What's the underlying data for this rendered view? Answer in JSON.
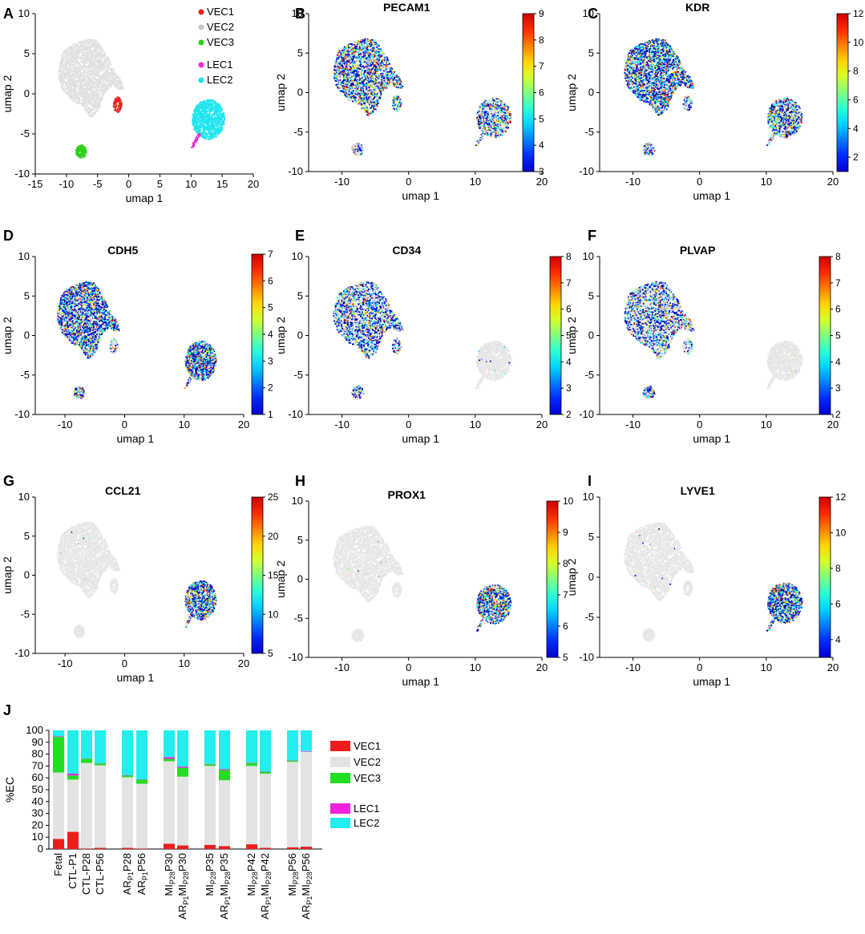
{
  "chart_data": [
    {
      "panel": "A",
      "type": "scatter",
      "title": "",
      "xlabel": "umap 1",
      "ylabel": "umap 2",
      "xlim": [
        -15,
        20
      ],
      "ylim": [
        -10,
        10
      ],
      "xticks": [
        -15,
        -10,
        -5,
        0,
        5,
        10,
        15,
        20
      ],
      "yticks": [
        -10,
        -5,
        0,
        5,
        10
      ],
      "legend": [
        {
          "label": "VEC1",
          "color": "#e8211c"
        },
        {
          "label": "VEC2",
          "color": "#c8c8c8"
        },
        {
          "label": "VEC3",
          "color": "#2fd01c"
        },
        {
          "label": "LEC1",
          "color": "#ee2bd6"
        },
        {
          "label": "LEC2",
          "color": "#1fe5ee"
        }
      ],
      "clusters": [
        {
          "name": "VEC2",
          "shape": "main",
          "cx": -5.5,
          "cy": 2.0,
          "color": "#e0e0e0"
        },
        {
          "name": "VEC1",
          "shape": "blob",
          "cx": -1.8,
          "cy": -1.4,
          "rx": 0.7,
          "ry": 1.0,
          "color": "#e8211c"
        },
        {
          "name": "VEC3",
          "shape": "blob",
          "cx": -7.6,
          "cy": -7.2,
          "rx": 1.0,
          "ry": 0.8,
          "color": "#2fd01c"
        },
        {
          "name": "LEC2",
          "shape": "blob",
          "cx": 12.8,
          "cy": -3.2,
          "rx": 2.6,
          "ry": 2.5,
          "color": "#1fe5ee"
        },
        {
          "name": "LEC1",
          "shape": "tail",
          "cx": 10.4,
          "cy": -6.2,
          "color": "#ee2bd6"
        }
      ]
    },
    {
      "panel": "B",
      "type": "scatter",
      "title": "PECAM1",
      "xlabel": "umap 1",
      "ylabel": "umap 2",
      "xlim": [
        -15,
        20
      ],
      "ylim": [
        -10,
        10
      ],
      "xticks": [
        -10,
        0,
        10,
        20
      ],
      "yticks": [
        -10,
        -5,
        0,
        5,
        10
      ],
      "colorbar": {
        "min": 3,
        "max": 9,
        "ticks": [
          3,
          4,
          5,
          6,
          7,
          8,
          9
        ]
      }
    },
    {
      "panel": "C",
      "type": "scatter",
      "title": "KDR",
      "xlabel": "umap 1",
      "ylabel": "umap 2",
      "xlim": [
        -15,
        20
      ],
      "ylim": [
        -10,
        10
      ],
      "xticks": [
        -10,
        0,
        10,
        20
      ],
      "yticks": [
        -10,
        -5,
        0,
        5,
        10
      ],
      "colorbar": {
        "min": 1,
        "max": 12,
        "ticks": [
          2,
          4,
          6,
          8,
          10,
          12
        ]
      }
    },
    {
      "panel": "D",
      "type": "scatter",
      "title": "CDH5",
      "xlabel": "umap 1",
      "ylabel": "umap 2",
      "xlim": [
        -15,
        20
      ],
      "ylim": [
        -10,
        10
      ],
      "xticks": [
        -10,
        0,
        10,
        20
      ],
      "yticks": [
        -10,
        -5,
        0,
        5,
        10
      ],
      "colorbar": {
        "min": 1,
        "max": 7,
        "ticks": [
          1,
          2,
          3,
          4,
          5,
          6,
          7
        ]
      }
    },
    {
      "panel": "E",
      "type": "scatter",
      "title": "CD34",
      "xlabel": "umap 1",
      "ylabel": "umap 2",
      "xlim": [
        -15,
        20
      ],
      "ylim": [
        -10,
        10
      ],
      "xticks": [
        -10,
        0,
        10,
        20
      ],
      "yticks": [
        -10,
        -5,
        0,
        5,
        10
      ],
      "colorbar": {
        "min": 2,
        "max": 8,
        "ticks": [
          2,
          3,
          4,
          5,
          6,
          7,
          8
        ]
      }
    },
    {
      "panel": "F",
      "type": "scatter",
      "title": "PLVAP",
      "xlabel": "umap 1",
      "ylabel": "umap 2",
      "xlim": [
        -15,
        20
      ],
      "ylim": [
        -10,
        10
      ],
      "xticks": [
        -10,
        0,
        10,
        20
      ],
      "yticks": [
        -10,
        -5,
        0,
        5,
        10
      ],
      "colorbar": {
        "min": 2,
        "max": 8,
        "ticks": [
          2,
          3,
          4,
          5,
          6,
          7,
          8
        ]
      }
    },
    {
      "panel": "G",
      "type": "scatter",
      "title": "CCL21",
      "xlabel": "umap 1",
      "ylabel": "umap 2",
      "xlim": [
        -15,
        20
      ],
      "ylim": [
        -10,
        10
      ],
      "xticks": [
        -10,
        0,
        10,
        20
      ],
      "yticks": [
        -10,
        -5,
        0,
        5,
        10
      ],
      "colorbar": {
        "min": 5,
        "max": 25,
        "ticks": [
          5,
          10,
          15,
          20,
          25
        ]
      }
    },
    {
      "panel": "H",
      "type": "scatter",
      "title": "PROX1",
      "xlabel": "umap 1",
      "ylabel": "umap 2",
      "xlim": [
        -15,
        20
      ],
      "ylim": [
        -10,
        10
      ],
      "xticks": [
        -10,
        0,
        10,
        20
      ],
      "yticks": [
        -10,
        -5,
        0,
        5,
        10
      ],
      "colorbar": {
        "min": 5,
        "max": 10,
        "ticks": [
          5,
          6,
          7,
          8,
          9,
          10
        ]
      }
    },
    {
      "panel": "I",
      "type": "scatter",
      "title": "LYVE1",
      "xlabel": "umap 1",
      "ylabel": "umap 2",
      "xlim": [
        -15,
        20
      ],
      "ylim": [
        -10,
        10
      ],
      "xticks": [
        -10,
        0,
        10,
        20
      ],
      "yticks": [
        -10,
        -5,
        0,
        5,
        10
      ],
      "colorbar": {
        "min": 3,
        "max": 12,
        "ticks": [
          4,
          6,
          8,
          10,
          12
        ]
      }
    },
    {
      "panel": "J",
      "type": "bar",
      "stacked": true,
      "ylabel": "%EC",
      "xlabel": "",
      "ylim": [
        0,
        100
      ],
      "yticks": [
        0,
        10,
        20,
        30,
        40,
        50,
        60,
        70,
        80,
        90,
        100
      ],
      "categories": [
        {
          "label": "Fetal",
          "parts": [
            {
              "t": "Fetal"
            }
          ]
        },
        {
          "label": "CTL-P1",
          "parts": [
            {
              "t": "CTL-P1"
            }
          ]
        },
        {
          "label": "CTL-P28",
          "parts": [
            {
              "t": "CTL-P28"
            }
          ]
        },
        {
          "label": "CTL-P56",
          "parts": [
            {
              "t": "CTL-P56"
            }
          ]
        },
        {
          "label": "ARP1P28",
          "parts": [
            {
              "t": "AR"
            },
            {
              "t": "P1",
              "sub": true
            },
            {
              "t": "P28"
            }
          ]
        },
        {
          "label": "ARP1P56",
          "parts": [
            {
              "t": "AR"
            },
            {
              "t": "P1",
              "sub": true
            },
            {
              "t": "P56"
            }
          ]
        },
        {
          "label": "MIP28P30",
          "parts": [
            {
              "t": "MI"
            },
            {
              "t": "P28",
              "sub": true
            },
            {
              "t": "P30"
            }
          ]
        },
        {
          "label": "ARP1MIP28P30",
          "parts": [
            {
              "t": "AR"
            },
            {
              "t": "P1",
              "sub": true
            },
            {
              "t": "MI"
            },
            {
              "t": "P28",
              "sub": true
            },
            {
              "t": "P30"
            }
          ]
        },
        {
          "label": "MIP28P35",
          "parts": [
            {
              "t": "MI"
            },
            {
              "t": "P28",
              "sub": true
            },
            {
              "t": "P35"
            }
          ]
        },
        {
          "label": "ARP1MIP28P35",
          "parts": [
            {
              "t": "AR"
            },
            {
              "t": "P1",
              "sub": true
            },
            {
              "t": "MI"
            },
            {
              "t": "P28",
              "sub": true
            },
            {
              "t": "P35"
            }
          ]
        },
        {
          "label": "MIP28P42",
          "parts": [
            {
              "t": "MI"
            },
            {
              "t": "P28",
              "sub": true
            },
            {
              "t": "P42"
            }
          ]
        },
        {
          "label": "ARP1MIP28P42",
          "parts": [
            {
              "t": "AR"
            },
            {
              "t": "P1",
              "sub": true
            },
            {
              "t": "MI"
            },
            {
              "t": "P28",
              "sub": true
            },
            {
              "t": "P42"
            }
          ]
        },
        {
          "label": "MIP28P56",
          "parts": [
            {
              "t": "MI"
            },
            {
              "t": "P28",
              "sub": true
            },
            {
              "t": "P56"
            }
          ]
        },
        {
          "label": "ARP1MIP28P56",
          "parts": [
            {
              "t": "AR"
            },
            {
              "t": "P1",
              "sub": true
            },
            {
              "t": "MI"
            },
            {
              "t": "P28",
              "sub": true
            },
            {
              "t": "P56"
            }
          ]
        }
      ],
      "series": [
        {
          "name": "VEC1",
          "color": "#ee1c1c",
          "values": [
            8.5,
            14.5,
            0.5,
            1.0,
            1.0,
            0.5,
            4.5,
            3.0,
            3.5,
            2.5,
            4.0,
            1.0,
            1.5,
            2.0
          ]
        },
        {
          "name": "VEC2",
          "color": "#e3e3e3",
          "values": [
            56,
            44,
            72,
            69.5,
            59.5,
            54.5,
            69.5,
            58,
            66.5,
            55.5,
            66,
            62.5,
            72,
            80
          ]
        },
        {
          "name": "VEC3",
          "color": "#22dd22",
          "values": [
            30,
            3.5,
            3.5,
            1.5,
            1.5,
            3.5,
            2.0,
            7.5,
            1.5,
            8.5,
            2.5,
            1.5,
            1.0,
            0
          ]
        },
        {
          "name": "LEC1",
          "color": "#ee22dd",
          "values": [
            0.5,
            1.5,
            0.2,
            0.2,
            0.2,
            0.2,
            1.5,
            1.0,
            0.3,
            0.8,
            0.2,
            0.2,
            0.2,
            0.5
          ]
        },
        {
          "name": "LEC2",
          "color": "#22eeee",
          "values": [
            5.0,
            36.5,
            23.8,
            27.8,
            37.8,
            41.3,
            22.5,
            30.5,
            28.2,
            32.7,
            27.3,
            34.8,
            25.3,
            17.5
          ]
        }
      ],
      "legend_placement": "right"
    }
  ],
  "panel_letters": [
    "A",
    "B",
    "C",
    "D",
    "E",
    "F",
    "G",
    "H",
    "I",
    "J"
  ]
}
